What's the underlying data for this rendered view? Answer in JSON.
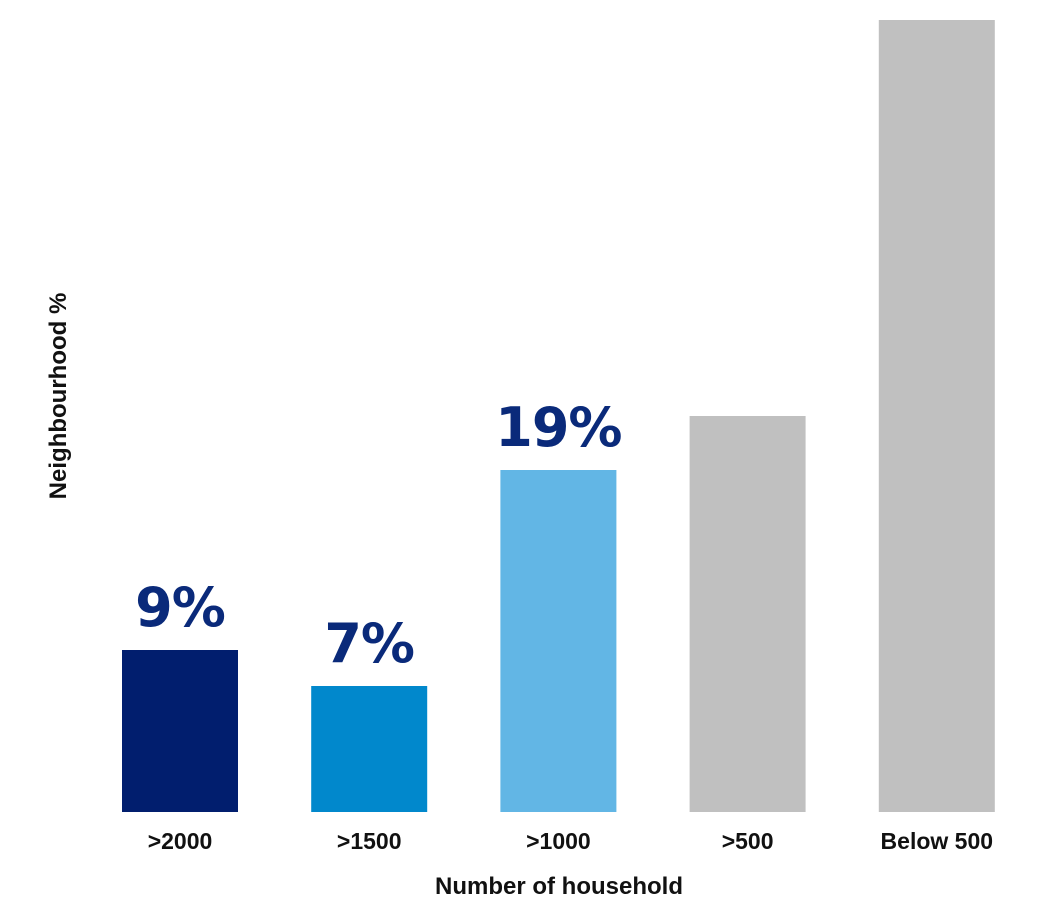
{
  "chart_data": {
    "type": "bar",
    "xlabel": "Number of household",
    "ylabel": "Neighbourhood %",
    "categories": [
      ">2000",
      ">1500",
      ">1000",
      ">500",
      "Below 500"
    ],
    "values": [
      9,
      7,
      19,
      22,
      44
    ],
    "data_labels": [
      "9%",
      "7%",
      "19%",
      "",
      ""
    ],
    "bar_colors": [
      "#011e6e",
      "#0188cc",
      "#62b6e5",
      "#c0c0c0",
      "#c0c0c0"
    ],
    "label_color": "#0a2a7a",
    "ylim": [
      0,
      44
    ],
    "grid": false,
    "legend": "none"
  }
}
